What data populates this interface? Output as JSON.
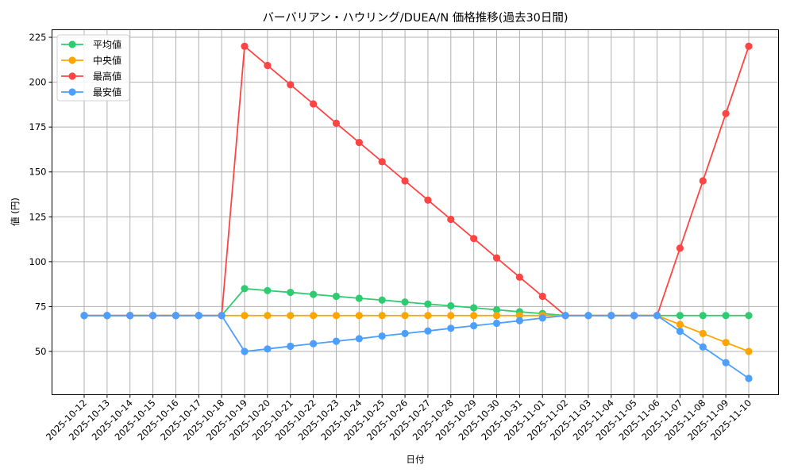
{
  "chart_data": {
    "type": "line",
    "title": "バーバリアン・ハウリング/DUEA/N 価格推移(過去30日間)",
    "xlabel": "日付",
    "ylabel": "値 (円)",
    "ylim": [
      27.5,
      231
    ],
    "yticks": [
      50,
      75,
      100,
      125,
      150,
      175,
      200,
      225
    ],
    "grid": true,
    "legend_position": "upper left",
    "categories": [
      "2025-10-12",
      "2025-10-13",
      "2025-10-14",
      "2025-10-15",
      "2025-10-16",
      "2025-10-17",
      "2025-10-18",
      "2025-10-19",
      "2025-10-20",
      "2025-10-21",
      "2025-10-22",
      "2025-10-23",
      "2025-10-24",
      "2025-10-25",
      "2025-10-26",
      "2025-10-27",
      "2025-10-28",
      "2025-10-29",
      "2025-10-30",
      "2025-10-31",
      "2025-11-01",
      "2025-11-02",
      "2025-11-03",
      "2025-11-04",
      "2025-11-05",
      "2025-11-06",
      "2025-11-07",
      "2025-11-08",
      "2025-11-09",
      "2025-11-10"
    ],
    "series": [
      {
        "name": "平均値",
        "color": "#2ecc71",
        "values": [
          70,
          70,
          70,
          70,
          70,
          70,
          70,
          85,
          83.9,
          82.9,
          81.8,
          80.7,
          79.6,
          78.6,
          77.5,
          76.4,
          75.4,
          74.3,
          73.2,
          72.1,
          71.1,
          70,
          70,
          70,
          70,
          70,
          70,
          70,
          70,
          70
        ]
      },
      {
        "name": "中央値",
        "color": "#ffa500",
        "values": [
          70,
          70,
          70,
          70,
          70,
          70,
          70,
          70,
          70,
          70,
          70,
          70,
          70,
          70,
          70,
          70,
          70,
          70,
          70,
          70,
          70,
          70,
          70,
          70,
          70,
          70,
          65,
          60,
          55,
          50
        ]
      },
      {
        "name": "最高値",
        "color": "#ff4444",
        "values": [
          70,
          70,
          70,
          70,
          70,
          70,
          70,
          220,
          209.3,
          198.6,
          187.9,
          177.1,
          166.4,
          155.7,
          145,
          134.3,
          123.6,
          112.9,
          102.1,
          91.4,
          80.7,
          70,
          70,
          70,
          70,
          70,
          107.5,
          145,
          182.5,
          220
        ]
      },
      {
        "name": "最安値",
        "color": "#4d9fff",
        "values": [
          70,
          70,
          70,
          70,
          70,
          70,
          70,
          50,
          51.4,
          52.9,
          54.3,
          55.7,
          57.1,
          58.6,
          60,
          61.4,
          62.9,
          64.3,
          65.7,
          67.1,
          68.6,
          70,
          70,
          70,
          70,
          70,
          61.25,
          52.5,
          43.75,
          35
        ]
      }
    ]
  }
}
